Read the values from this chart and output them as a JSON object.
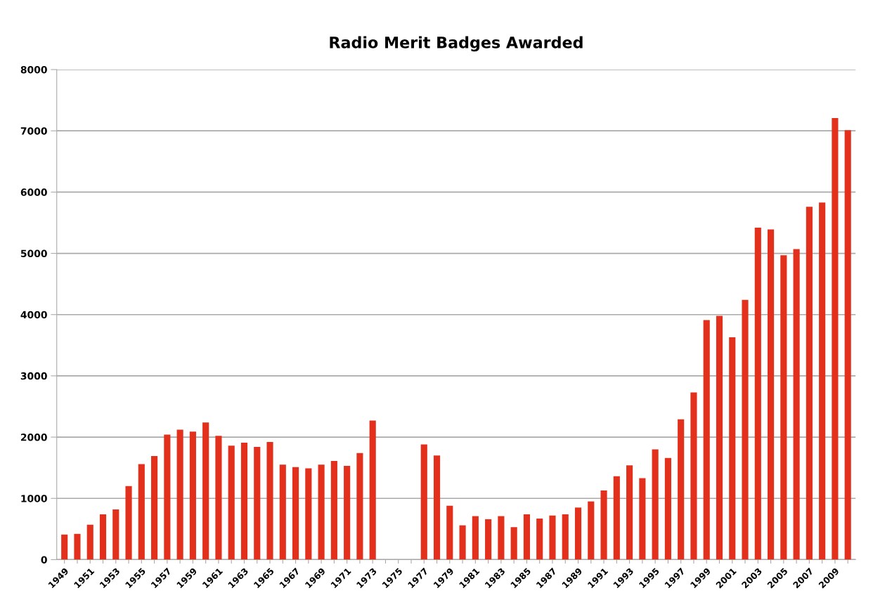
{
  "chart_data": {
    "type": "bar",
    "title": "Radio Merit Badges Awarded",
    "categories": [
      "1949",
      null,
      "1951",
      null,
      "1953",
      null,
      "1955",
      null,
      "1957",
      null,
      "1959",
      null,
      "1961",
      null,
      "1963",
      null,
      "1965",
      null,
      "1967",
      null,
      "1969",
      null,
      "1971",
      null,
      "1973",
      null,
      "1975",
      null,
      "1977",
      null,
      "1979",
      null,
      "1981",
      null,
      "1983",
      null,
      "1985",
      null,
      "1987",
      null,
      "1989",
      null,
      "1991",
      null,
      "1993",
      null,
      "1995",
      null,
      "1997",
      null,
      "1999",
      null,
      "2001",
      null,
      "2003",
      null,
      "2005",
      null,
      "2007",
      null,
      "2009",
      null
    ],
    "values": [
      410,
      420,
      570,
      740,
      820,
      1200,
      1560,
      1690,
      2040,
      2120,
      2090,
      2240,
      2020,
      1860,
      1910,
      1840,
      1920,
      1550,
      1510,
      1490,
      1550,
      1610,
      1530,
      1740,
      2270,
      null,
      null,
      null,
      1880,
      1700,
      880,
      560,
      710,
      660,
      710,
      530,
      740,
      670,
      720,
      740,
      850,
      950,
      1130,
      1360,
      1540,
      1330,
      1800,
      1660,
      2290,
      2730,
      3910,
      3980,
      3630,
      4240,
      5420,
      5390,
      4970,
      5070,
      5760,
      5830,
      7210,
      7010
    ],
    "color": "#e2301c",
    "ylim": [
      0,
      8000
    ],
    "yticks": [
      0,
      1000,
      2000,
      3000,
      4000,
      5000,
      6000,
      7000,
      8000
    ],
    "grid": "y",
    "legend": false
  }
}
